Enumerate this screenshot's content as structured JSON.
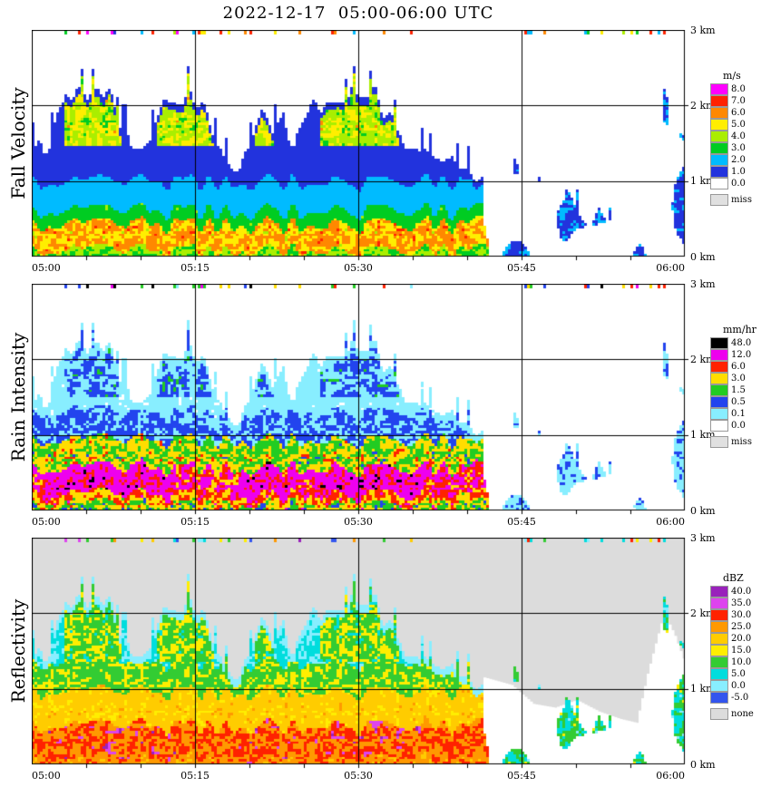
{
  "title": "2022-12-17  05:00-06:00 UTC",
  "x_tick_labels": [
    "05:00",
    "05:15",
    "05:30",
    "05:45",
    "06:00"
  ],
  "y_tick_labels": [
    "3 km",
    "2 km",
    "1 km",
    "0 km"
  ],
  "chart_data": {
    "type": "heatmap",
    "title": "2022-12-17  05:00-06:00 UTC",
    "x_axis": {
      "start_minute": 0,
      "end_minute": 60,
      "tick_labels": [
        "05:00",
        "05:15",
        "05:30",
        "05:45",
        "06:00"
      ],
      "gridline_minutes": [
        15,
        30,
        45
      ]
    },
    "y_axis": {
      "min_km": 0,
      "max_km": 3,
      "tick_labels": [
        "3 km",
        "2 km",
        "1 km",
        "0 km"
      ],
      "gridline_km": [
        1,
        2
      ]
    },
    "panels": [
      {
        "label": "Fall Velocity",
        "unit": "m/s",
        "no_data_color": "#ffffff",
        "scale": [
          {
            "value": "8.0",
            "color": "#ff00ff"
          },
          {
            "value": "7.0",
            "color": "#ff2200"
          },
          {
            "value": "6.0",
            "color": "#ff8800"
          },
          {
            "value": "5.0",
            "color": "#ffee00"
          },
          {
            "value": "4.0",
            "color": "#aaee00"
          },
          {
            "value": "3.0",
            "color": "#00cc22"
          },
          {
            "value": "2.0",
            "color": "#00bbff"
          },
          {
            "value": "1.0",
            "color": "#2233dd"
          },
          {
            "value": "0.0",
            "color": "#ffffff"
          },
          {
            "value": "miss",
            "color": "#e0e0e0"
          }
        ]
      },
      {
        "label": "Rain Intensity",
        "unit": "mm/hr",
        "no_data_color": "#ffffff",
        "scale": [
          {
            "value": "48.0",
            "color": "#000000"
          },
          {
            "value": "12.0",
            "color": "#ee00ee"
          },
          {
            "value": "6.0",
            "color": "#ff2200"
          },
          {
            "value": "3.0",
            "color": "#ffdd00"
          },
          {
            "value": "1.5",
            "color": "#22cc22"
          },
          {
            "value": "0.5",
            "color": "#2244ee"
          },
          {
            "value": "0.1",
            "color": "#88eeff"
          },
          {
            "value": "0.0",
            "color": "#ffffff"
          },
          {
            "value": "miss",
            "color": "#e0e0e0"
          }
        ]
      },
      {
        "label": "Reflectivity",
        "unit": "dBZ",
        "no_data_color": "#dcdcdc",
        "scale": [
          {
            "value": "40.0",
            "color": "#9922bb"
          },
          {
            "value": "35.0",
            "color": "#dd44ee"
          },
          {
            "value": "30.0",
            "color": "#ff2200"
          },
          {
            "value": "25.0",
            "color": "#ff9900"
          },
          {
            "value": "20.0",
            "color": "#ffcc00"
          },
          {
            "value": "15.0",
            "color": "#ffee00"
          },
          {
            "value": "10.0",
            "color": "#33cc33"
          },
          {
            "value": "5.0",
            "color": "#00dddd"
          },
          {
            "value": "0.0",
            "color": "#88eeff"
          },
          {
            "value": "-5.0",
            "color": "#3355ee"
          },
          {
            "value": "none",
            "color": "#dcdcdc"
          }
        ]
      }
    ],
    "echo_top_km": [
      [
        0,
        1.55
      ],
      [
        1,
        1.3
      ],
      [
        2,
        1.7
      ],
      [
        3,
        2.15
      ],
      [
        4,
        2.25
      ],
      [
        5,
        2.1
      ],
      [
        6,
        2.25
      ],
      [
        7,
        2.2
      ],
      [
        8,
        1.8
      ],
      [
        9,
        1.5
      ],
      [
        10,
        1.45
      ],
      [
        11,
        1.7
      ],
      [
        12,
        2.1
      ],
      [
        13,
        2.15
      ],
      [
        14,
        2.0
      ],
      [
        15,
        2.15
      ],
      [
        16,
        1.9
      ],
      [
        17,
        1.4
      ],
      [
        18,
        1.25
      ],
      [
        19,
        1.15
      ],
      [
        20,
        1.5
      ],
      [
        21,
        1.85
      ],
      [
        22,
        1.6
      ],
      [
        23,
        1.9
      ],
      [
        24,
        1.45
      ],
      [
        25,
        1.75
      ],
      [
        26,
        1.95
      ],
      [
        27,
        2.1
      ],
      [
        28,
        2.2
      ],
      [
        29,
        2.1
      ],
      [
        30,
        2.3
      ],
      [
        31,
        2.15
      ],
      [
        32,
        2.05
      ],
      [
        33,
        1.9
      ],
      [
        34,
        1.6
      ],
      [
        35,
        1.5
      ],
      [
        36,
        1.55
      ],
      [
        37,
        1.35
      ],
      [
        38,
        1.4
      ],
      [
        39,
        1.2
      ],
      [
        40,
        1.1
      ],
      [
        41,
        1.05
      ],
      [
        42,
        0.95
      ],
      [
        43,
        0.9
      ],
      [
        44,
        1.1
      ],
      [
        45,
        0.85
      ],
      [
        46,
        0.6
      ],
      [
        47,
        0.8
      ],
      [
        48,
        0.55
      ],
      [
        49,
        0.85
      ],
      [
        50,
        0.6
      ],
      [
        51,
        0.4
      ],
      [
        52,
        0.65
      ],
      [
        53,
        0.35
      ],
      [
        54,
        0.5
      ],
      [
        55,
        0.3
      ],
      [
        56,
        0.5
      ],
      [
        57,
        1.1
      ],
      [
        58,
        1.9
      ],
      [
        59,
        1.6
      ],
      [
        60,
        1.25
      ]
    ],
    "features": {
      "surface_high_value_layer_top_km": 0.5,
      "melting_band_km": [
        0.45,
        0.6
      ],
      "aloft_cell_minutes": [
        [
          3,
          8
        ],
        [
          11.5,
          16.5
        ],
        [
          20.5,
          22
        ],
        [
          26.5,
          33.5
        ]
      ],
      "heavy_rain_minutes": [
        [
          1,
          13
        ],
        [
          19,
          24
        ],
        [
          26,
          36
        ]
      ],
      "dissipating_after_minute": 41.3,
      "late_coverage_threshold": [
        [
          41,
          0.25
        ],
        [
          44,
          0.45
        ],
        [
          46,
          0.5
        ],
        [
          50,
          0.55
        ],
        [
          53,
          0.62
        ],
        [
          55,
          0.66
        ],
        [
          56.5,
          0.5
        ],
        [
          58,
          0.35
        ],
        [
          59.5,
          0.5
        ],
        [
          60,
          0.5
        ]
      ],
      "late_envelope_km": [
        [
          41.5,
          1.15
        ],
        [
          44,
          1.05
        ],
        [
          46,
          0.8
        ],
        [
          48,
          0.75
        ],
        [
          50,
          0.85
        ],
        [
          52,
          0.7
        ],
        [
          54,
          0.6
        ],
        [
          55.5,
          0.55
        ],
        [
          56.5,
          1.2
        ],
        [
          58,
          2.0
        ],
        [
          59,
          1.7
        ],
        [
          60,
          1.3
        ]
      ],
      "top_speckle_row_km": 3
    }
  }
}
